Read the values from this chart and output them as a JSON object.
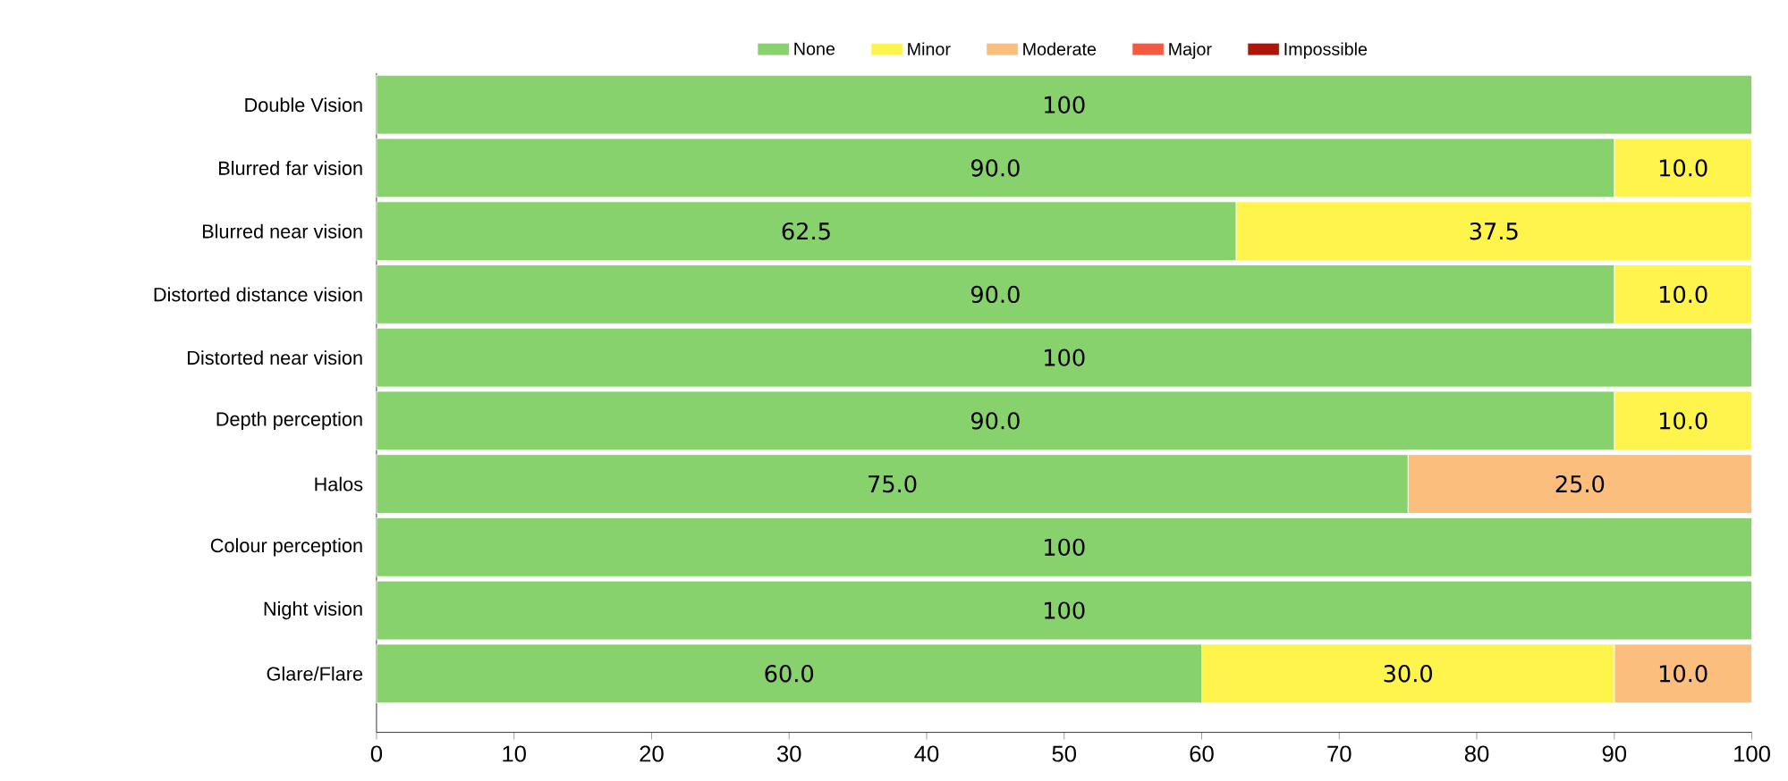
{
  "chart_data": {
    "type": "bar",
    "orientation": "horizontal",
    "stacked": true,
    "legend": "top",
    "grid": false,
    "categories": [
      "Double Vision",
      "Blurred far vision",
      "Blurred near vision",
      "Distorted distance vision",
      "Distorted near vision",
      "Depth perception",
      "Halos",
      "Colour perception",
      "Night vision",
      "Glare/Flare"
    ],
    "xlim": [
      0,
      100
    ],
    "xticks": [
      0,
      10,
      20,
      30,
      40,
      50,
      60,
      70,
      80,
      90,
      100
    ],
    "series": [
      {
        "name": "None",
        "color": "#88d26e",
        "values": [
          100,
          90,
          62.5,
          90,
          100,
          90,
          75,
          100,
          100,
          60
        ],
        "value_labels": [
          "100",
          "90.0",
          "62.5",
          "90.0",
          "100",
          "90.0",
          "75.0",
          "100",
          "100",
          "60.0"
        ]
      },
      {
        "name": "Minor",
        "color": "#fff44c",
        "values": [
          0,
          10,
          37.5,
          10,
          0,
          10,
          0,
          0,
          0,
          30
        ],
        "value_labels": [
          null,
          "10.0",
          "37.5",
          "10.0",
          null,
          "10.0",
          null,
          null,
          null,
          "30.0"
        ]
      },
      {
        "name": "Moderate",
        "color": "#fbbe7d",
        "values": [
          0,
          0,
          0,
          0,
          0,
          0,
          25,
          0,
          0,
          10
        ],
        "value_labels": [
          null,
          null,
          null,
          null,
          null,
          null,
          "25.0",
          null,
          null,
          "10.0"
        ]
      },
      {
        "name": "Major",
        "color": "#f45a3f",
        "values": [
          0,
          0,
          0,
          0,
          0,
          0,
          0,
          0,
          0,
          0
        ]
      },
      {
        "name": "Impossible",
        "color": "#ad1608",
        "values": [
          0,
          0,
          0,
          0,
          0,
          0,
          0,
          0,
          0,
          0
        ]
      }
    ]
  }
}
